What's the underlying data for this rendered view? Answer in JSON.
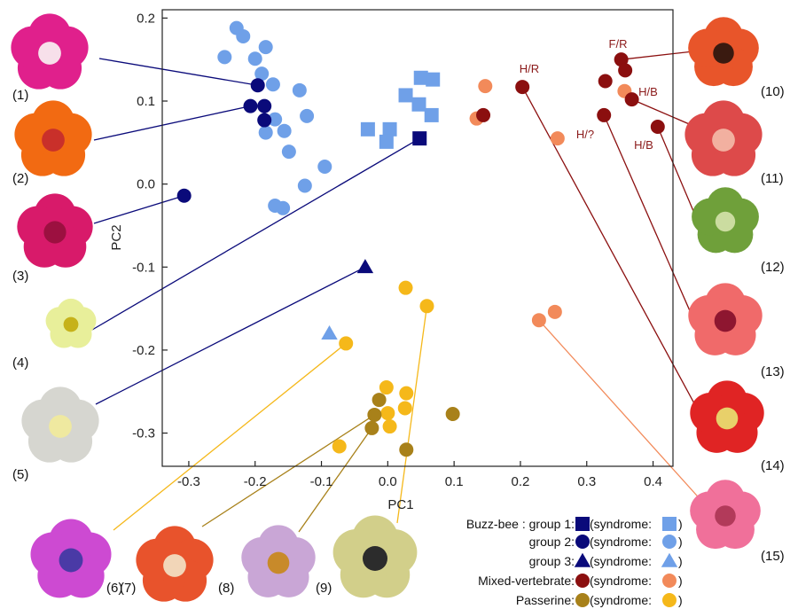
{
  "chart_data": {
    "type": "scatter",
    "xlabel": "PC1",
    "ylabel": "PC2",
    "xlim": [
      -0.34,
      0.43
    ],
    "ylim": [
      -0.34,
      0.21
    ],
    "xticks": [
      -0.3,
      -0.2,
      -0.1,
      0.0,
      0.1,
      0.2,
      0.3,
      0.4
    ],
    "yticks": [
      0.2,
      0.1,
      0.0,
      -0.1,
      -0.2,
      -0.3
    ],
    "xtick_labels": [
      "-0.3",
      "-0.2",
      "-0.1",
      "0.0",
      "0.1",
      "0.2",
      "0.3",
      "0.4"
    ],
    "ytick_labels": [
      "0.2",
      "0.1",
      "0.0",
      "-0.1",
      "-0.2",
      "-0.3"
    ],
    "grid": false,
    "series": [
      {
        "key": "bb1_syn",
        "marker": "square",
        "color": "#6fa0e8",
        "points": [
          [
            0.05,
            0.128
          ],
          [
            0.068,
            0.126
          ],
          [
            0.027,
            0.107
          ],
          [
            0.047,
            0.096
          ],
          [
            0.066,
            0.083
          ],
          [
            -0.03,
            0.066
          ],
          [
            0.003,
            0.066
          ],
          [
            -0.002,
            0.051
          ]
        ]
      },
      {
        "key": "bb1",
        "marker": "square",
        "color": "#0a0a7a",
        "points": [
          [
            0.048,
            0.055
          ]
        ]
      },
      {
        "key": "bb2_syn",
        "marker": "circle",
        "color": "#6fa0e8",
        "points": [
          [
            -0.228,
            0.188
          ],
          [
            -0.218,
            0.178
          ],
          [
            -0.246,
            0.153
          ],
          [
            -0.2,
            0.151
          ],
          [
            -0.184,
            0.165
          ],
          [
            -0.173,
            0.12
          ],
          [
            -0.133,
            0.113
          ],
          [
            -0.19,
            0.133
          ],
          [
            -0.17,
            0.078
          ],
          [
            -0.122,
            0.082
          ],
          [
            -0.156,
            0.064
          ],
          [
            -0.184,
            0.062
          ],
          [
            -0.149,
            0.039
          ],
          [
            -0.095,
            0.021
          ],
          [
            -0.125,
            -0.002
          ],
          [
            -0.17,
            -0.026
          ],
          [
            -0.158,
            -0.029
          ]
        ]
      },
      {
        "key": "bb2",
        "marker": "circle",
        "color": "#0a0a7a",
        "points": [
          [
            -0.196,
            0.119
          ],
          [
            -0.207,
            0.094
          ],
          [
            -0.186,
            0.094
          ],
          [
            -0.186,
            0.077
          ],
          [
            -0.307,
            -0.014
          ]
        ]
      },
      {
        "key": "bb3_syn",
        "marker": "triangle",
        "color": "#6fa0e8",
        "points": [
          [
            -0.088,
            -0.18
          ]
        ]
      },
      {
        "key": "bb3",
        "marker": "triangle",
        "color": "#0a0a7a",
        "points": [
          [
            -0.034,
            -0.1
          ]
        ]
      },
      {
        "key": "mv_syn",
        "marker": "circle",
        "color": "#f28a5a",
        "points": [
          [
            0.147,
            0.118
          ],
          [
            0.134,
            0.079
          ],
          [
            0.256,
            0.055
          ],
          [
            0.357,
            0.112
          ],
          [
            0.228,
            -0.164
          ],
          [
            0.252,
            -0.154
          ]
        ]
      },
      {
        "key": "mv",
        "marker": "circle",
        "color": "#8b0f0f",
        "points": [
          [
            0.144,
            0.083
          ],
          [
            0.203,
            0.117
          ],
          [
            0.328,
            0.124
          ],
          [
            0.352,
            0.15
          ],
          [
            0.358,
            0.137
          ],
          [
            0.326,
            0.083
          ],
          [
            0.368,
            0.102
          ],
          [
            0.407,
            0.069
          ]
        ]
      },
      {
        "key": "pa_syn",
        "marker": "circle",
        "color": "#f5b81a",
        "points": [
          [
            0.027,
            -0.125
          ],
          [
            0.059,
            -0.147
          ],
          [
            -0.063,
            -0.192
          ],
          [
            -0.002,
            -0.245
          ],
          [
            0.028,
            -0.252
          ],
          [
            0.026,
            -0.27
          ],
          [
            0.0,
            -0.276
          ],
          [
            0.003,
            -0.292
          ],
          [
            -0.073,
            -0.316
          ]
        ]
      },
      {
        "key": "pa",
        "marker": "circle",
        "color": "#a8811a",
        "points": [
          [
            -0.013,
            -0.26
          ],
          [
            -0.02,
            -0.278
          ],
          [
            -0.024,
            -0.294
          ],
          [
            0.028,
            -0.32
          ],
          [
            0.098,
            -0.277
          ]
        ]
      }
    ],
    "annotations": [
      "F/R",
      "H/R",
      "H/B",
      "H/?",
      "H/B"
    ],
    "flower_labels": [
      "(1)",
      "(2)",
      "(3)",
      "(4)",
      "(5)",
      "(6)",
      "(7)",
      "(8)",
      "(9)",
      "(10)",
      "(11)",
      "(12)",
      "(13)",
      "(14)",
      "(15)"
    ],
    "legend": {
      "rows": [
        {
          "label": "Buzz-bee  : group 1:",
          "symbol": "square",
          "color": "#0a0a7a",
          "syn_color": "#6fa0e8"
        },
        {
          "label": "group 2:",
          "symbol": "circle",
          "color": "#0a0a7a",
          "syn_color": "#6fa0e8"
        },
        {
          "label": "group 3:",
          "symbol": "triangle",
          "color": "#0a0a7a",
          "syn_color": "#6fa0e8"
        },
        {
          "label": "Mixed-vertebrate:",
          "symbol": "circle",
          "color": "#8b0f0f",
          "syn_color": "#f28a5a"
        },
        {
          "label": "Passerine:",
          "symbol": "circle",
          "color": "#a8811a",
          "syn_color": "#f5b81a"
        }
      ],
      "syn_prefix": "(syndrome:",
      "syn_suffix": ")"
    }
  }
}
